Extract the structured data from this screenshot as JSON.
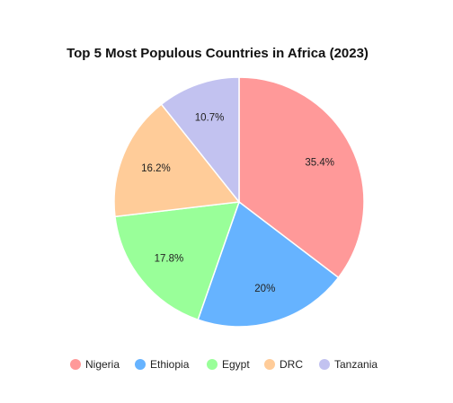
{
  "chart_data": {
    "type": "pie",
    "title": "Top 5 Most Populous Countries in Africa (2023)",
    "categories": [
      "Nigeria",
      "Ethiopia",
      "Egypt",
      "DRC",
      "Tanzania"
    ],
    "values": [
      35.4,
      20,
      17.8,
      16.2,
      10.7
    ],
    "labels": [
      "35.4%",
      "20%",
      "17.8%",
      "16.2%",
      "10.7%"
    ],
    "colors": [
      "#ff9999",
      "#66b3ff",
      "#99ff99",
      "#ffcc99",
      "#c2c2f0"
    ],
    "start_angle": "top (12 o'clock)",
    "direction": "clockwise",
    "legend_position": "bottom"
  }
}
